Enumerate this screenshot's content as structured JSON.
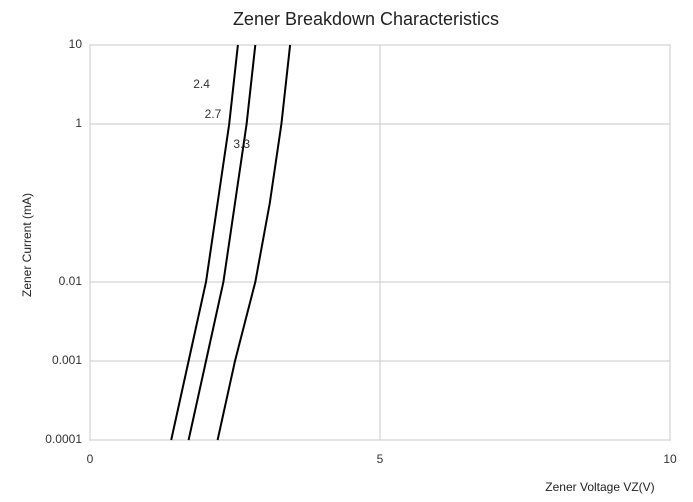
{
  "chart_data": {
    "type": "line",
    "title": "Zener Breakdown Characteristics",
    "x_label": "Zener Voltage VZ(V)",
    "y_label": "Zener Current (mA)",
    "log_y": true,
    "grid": true,
    "xlim": [
      0,
      10
    ],
    "xticks": [
      0,
      5,
      10
    ],
    "ylim": [
      0.0001,
      10
    ],
    "yticks": [
      0.0001,
      0.001,
      0.01,
      1,
      10
    ],
    "series": [
      {
        "name": "2.4",
        "color": "#000000",
        "x": [
          1.4,
          1.7,
          2.0,
          2.2,
          2.4,
          2.55
        ],
        "values": [
          0.0001,
          0.001,
          0.01,
          0.1,
          1,
          10
        ]
      },
      {
        "name": "2.7",
        "color": "#000000",
        "x": [
          1.7,
          2.0,
          2.3,
          2.5,
          2.7,
          2.85
        ],
        "values": [
          0.0001,
          0.001,
          0.01,
          0.1,
          1,
          10
        ]
      },
      {
        "name": "3.3",
        "color": "#000000",
        "x": [
          2.2,
          2.5,
          2.85,
          3.1,
          3.3,
          3.45
        ],
        "values": [
          0.0001,
          0.001,
          0.01,
          0.1,
          1,
          10
        ]
      }
    ]
  }
}
